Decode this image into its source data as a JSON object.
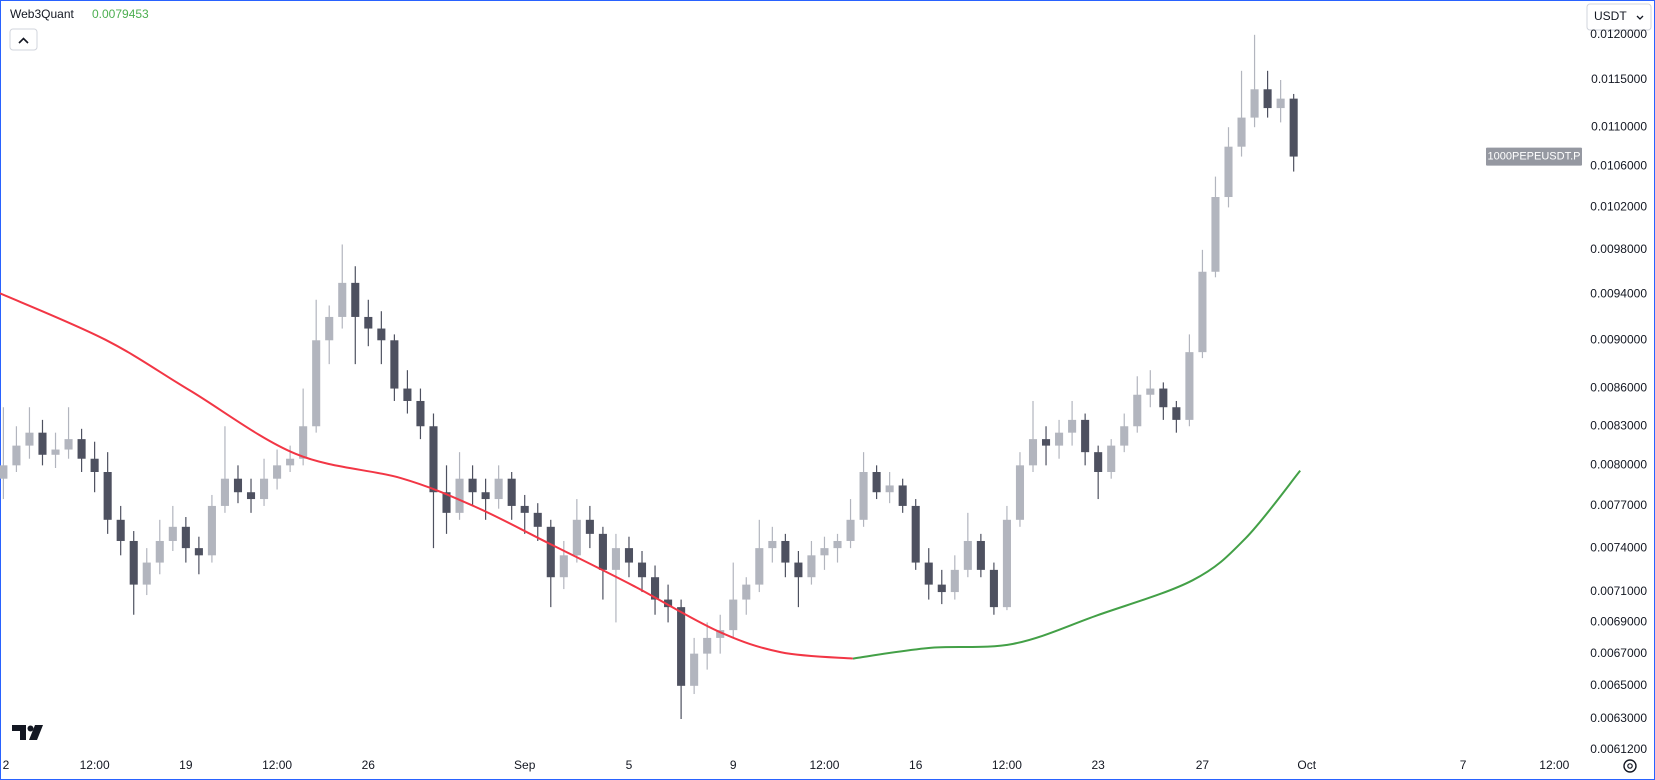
{
  "chart_data": {
    "type": "candlestick",
    "log_scale": true,
    "grid": false,
    "indicator": {
      "name": "Web3Quant",
      "value": 0.0079453,
      "color": "#4caf50"
    },
    "currency": "USDT",
    "symbol": "1000PEPEUSDT.P",
    "up_color": "#b2b5be",
    "down_color": "#4e5160",
    "xlim": [
      11.87,
      72.6
    ],
    "ylim": [
      0.00609,
      0.0124
    ],
    "xticks": [
      {
        "value": 12,
        "label": "2"
      },
      {
        "value": 15.5,
        "label": "12:00"
      },
      19,
      {
        "value": 22.5,
        "label": "12:00"
      },
      26,
      {
        "value": 32,
        "label": "Sep"
      },
      {
        "value": 36,
        "label": "5"
      },
      {
        "value": 40,
        "label": "9"
      },
      {
        "value": 43.5,
        "label": "12:00"
      },
      {
        "value": 47,
        "label": "16"
      },
      {
        "value": 50.5,
        "label": "12:00"
      },
      {
        "value": 54,
        "label": "23"
      },
      {
        "value": 58,
        "label": "27"
      },
      {
        "value": 62,
        "label": "Oct"
      },
      {
        "value": 68,
        "label": "7"
      },
      {
        "value": 71.5,
        "label": "12:00"
      }
    ],
    "yticks": [
      {
        "value": 0.012,
        "label": "0.0120000"
      },
      {
        "value": 0.0115,
        "label": "0.0115000"
      },
      {
        "value": 0.011,
        "label": "0.0110000"
      },
      {
        "value": 0.0106,
        "label": "0.0106000"
      },
      {
        "value": 0.0102,
        "label": "0.0102000"
      },
      {
        "value": 0.0098,
        "label": "0.0098000"
      },
      {
        "value": 0.0094,
        "label": "0.0094000"
      },
      {
        "value": 0.009,
        "label": "0.0090000"
      },
      {
        "value": 0.0086,
        "label": "0.0086000"
      },
      {
        "value": 0.0083,
        "label": "0.0083000"
      },
      {
        "value": 0.008,
        "label": "0.0080000"
      },
      {
        "value": 0.0077,
        "label": "0.0077000"
      },
      {
        "value": 0.0074,
        "label": "0.0074000"
      },
      {
        "value": 0.0071,
        "label": "0.0071000"
      },
      {
        "value": 0.0069,
        "label": "0.0069000"
      },
      {
        "value": 0.0067,
        "label": "0.0067000"
      },
      {
        "value": 0.0065,
        "label": "0.0065000"
      },
      {
        "value": 0.0063,
        "label": "0.0063000"
      },
      {
        "value": 0.00612,
        "label": "0.0061200"
      }
    ],
    "x": [
      12,
      12.5,
      13,
      13.5,
      14,
      14.5,
      15,
      15.5,
      16,
      16.5,
      17,
      17.5,
      18,
      18.5,
      19,
      19.5,
      20,
      20.5,
      21,
      21.5,
      22,
      22.5,
      23,
      23.5,
      24,
      24.5,
      25,
      25.5,
      26,
      26.5,
      27,
      27.5,
      28,
      28.5,
      29,
      29.5,
      30,
      30.5,
      31,
      31.5,
      32,
      32.5,
      33,
      33.5,
      34,
      34.5,
      35,
      35.5,
      36,
      36.5,
      37,
      37.5,
      38,
      38.5,
      39,
      39.5,
      40,
      40.5,
      41,
      41.5,
      42,
      42.5,
      43,
      43.5,
      44,
      44.5,
      45,
      45.5,
      46,
      46.5,
      47,
      47.5,
      48,
      48.5,
      49,
      49.5,
      50,
      50.5,
      51,
      51.5,
      52,
      52.5,
      53,
      53.5,
      54,
      54.5,
      55,
      55.5,
      56,
      56.5,
      57,
      57.5,
      58,
      58.5,
      59,
      59.5,
      60,
      60.5,
      61,
      61.5
    ],
    "ohlc": [
      [
        0.0079,
        0.00845,
        0.00775,
        0.008
      ],
      [
        0.008,
        0.0083,
        0.00795,
        0.00815
      ],
      [
        0.00815,
        0.00845,
        0.00805,
        0.00825
      ],
      [
        0.00825,
        0.00835,
        0.008,
        0.00808
      ],
      [
        0.00808,
        0.00825,
        0.00798,
        0.00812
      ],
      [
        0.00812,
        0.00845,
        0.00805,
        0.0082
      ],
      [
        0.0082,
        0.00828,
        0.00795,
        0.00805
      ],
      [
        0.00805,
        0.00818,
        0.0078,
        0.00795
      ],
      [
        0.00795,
        0.0081,
        0.0075,
        0.0076
      ],
      [
        0.0076,
        0.0077,
        0.00735,
        0.00745
      ],
      [
        0.00745,
        0.00752,
        0.00695,
        0.00715
      ],
      [
        0.00715,
        0.0074,
        0.00708,
        0.0073
      ],
      [
        0.0073,
        0.0076,
        0.00722,
        0.00745
      ],
      [
        0.00745,
        0.0077,
        0.00738,
        0.00755
      ],
      [
        0.00755,
        0.00762,
        0.0073,
        0.0074
      ],
      [
        0.0074,
        0.00748,
        0.00722,
        0.00735
      ],
      [
        0.00735,
        0.00778,
        0.0073,
        0.0077
      ],
      [
        0.0077,
        0.0083,
        0.00765,
        0.0079
      ],
      [
        0.0079,
        0.008,
        0.00772,
        0.0078
      ],
      [
        0.0078,
        0.0079,
        0.00765,
        0.00775
      ],
      [
        0.00775,
        0.00805,
        0.0077,
        0.0079
      ],
      [
        0.0079,
        0.00812,
        0.00782,
        0.008
      ],
      [
        0.008,
        0.00815,
        0.00795,
        0.00805
      ],
      [
        0.00805,
        0.0086,
        0.008,
        0.0083
      ],
      [
        0.0083,
        0.00935,
        0.00825,
        0.009
      ],
      [
        0.009,
        0.0093,
        0.0088,
        0.0092
      ],
      [
        0.0092,
        0.00985,
        0.0091,
        0.0095
      ],
      [
        0.0095,
        0.00965,
        0.0088,
        0.0092
      ],
      [
        0.0092,
        0.00935,
        0.00895,
        0.0091
      ],
      [
        0.0091,
        0.00925,
        0.0088,
        0.009
      ],
      [
        0.009,
        0.00905,
        0.0085,
        0.0086
      ],
      [
        0.0086,
        0.00875,
        0.0084,
        0.0085
      ],
      [
        0.0085,
        0.0086,
        0.0082,
        0.0083
      ],
      [
        0.0083,
        0.0084,
        0.0074,
        0.0078
      ],
      [
        0.0078,
        0.008,
        0.0075,
        0.00765
      ],
      [
        0.00765,
        0.0081,
        0.0076,
        0.0079
      ],
      [
        0.0079,
        0.008,
        0.0077,
        0.0078
      ],
      [
        0.0078,
        0.0079,
        0.0076,
        0.00775
      ],
      [
        0.00775,
        0.008,
        0.00768,
        0.0079
      ],
      [
        0.0079,
        0.00795,
        0.0076,
        0.0077
      ],
      [
        0.0077,
        0.00778,
        0.0075,
        0.00765
      ],
      [
        0.00765,
        0.00772,
        0.00745,
        0.00755
      ],
      [
        0.00755,
        0.0076,
        0.007,
        0.0072
      ],
      [
        0.0072,
        0.00745,
        0.00712,
        0.00735
      ],
      [
        0.00735,
        0.00775,
        0.0073,
        0.0076
      ],
      [
        0.0076,
        0.0077,
        0.0074,
        0.0075
      ],
      [
        0.0075,
        0.00755,
        0.00705,
        0.00725
      ],
      [
        0.00725,
        0.0075,
        0.0069,
        0.0074
      ],
      [
        0.0074,
        0.00748,
        0.0072,
        0.0073
      ],
      [
        0.0073,
        0.00738,
        0.0071,
        0.0072
      ],
      [
        0.0072,
        0.00728,
        0.00695,
        0.00705
      ],
      [
        0.00705,
        0.00715,
        0.0069,
        0.007
      ],
      [
        0.007,
        0.00705,
        0.0063,
        0.0065
      ],
      [
        0.0065,
        0.0068,
        0.00645,
        0.0067
      ],
      [
        0.0067,
        0.0069,
        0.0066,
        0.0068
      ],
      [
        0.0068,
        0.00695,
        0.0067,
        0.00685
      ],
      [
        0.00685,
        0.0073,
        0.0068,
        0.00705
      ],
      [
        0.00705,
        0.0072,
        0.00695,
        0.00715
      ],
      [
        0.00715,
        0.0076,
        0.0071,
        0.0074
      ],
      [
        0.0074,
        0.00755,
        0.0073,
        0.00745
      ],
      [
        0.00745,
        0.0075,
        0.0072,
        0.0073
      ],
      [
        0.0073,
        0.00738,
        0.007,
        0.0072
      ],
      [
        0.0072,
        0.00745,
        0.00715,
        0.00735
      ],
      [
        0.00735,
        0.00748,
        0.00725,
        0.0074
      ],
      [
        0.0074,
        0.0075,
        0.0073,
        0.00745
      ],
      [
        0.00745,
        0.00775,
        0.0074,
        0.0076
      ],
      [
        0.0076,
        0.0081,
        0.00755,
        0.00795
      ],
      [
        0.00795,
        0.008,
        0.00775,
        0.0078
      ],
      [
        0.0078,
        0.00795,
        0.00772,
        0.00785
      ],
      [
        0.00785,
        0.0079,
        0.00765,
        0.0077
      ],
      [
        0.0077,
        0.00775,
        0.00725,
        0.0073
      ],
      [
        0.0073,
        0.0074,
        0.00705,
        0.00715
      ],
      [
        0.00715,
        0.00725,
        0.00702,
        0.0071
      ],
      [
        0.0071,
        0.00735,
        0.00705,
        0.00725
      ],
      [
        0.00725,
        0.00765,
        0.0072,
        0.00745
      ],
      [
        0.00745,
        0.0075,
        0.0072,
        0.00725
      ],
      [
        0.00725,
        0.0073,
        0.00695,
        0.007
      ],
      [
        0.007,
        0.0077,
        0.00698,
        0.0076
      ],
      [
        0.0076,
        0.0081,
        0.00755,
        0.008
      ],
      [
        0.008,
        0.0085,
        0.00795,
        0.0082
      ],
      [
        0.0082,
        0.0083,
        0.008,
        0.00815
      ],
      [
        0.00815,
        0.00835,
        0.00805,
        0.00825
      ],
      [
        0.00825,
        0.0085,
        0.00815,
        0.00835
      ],
      [
        0.00835,
        0.0084,
        0.008,
        0.0081
      ],
      [
        0.0081,
        0.00815,
        0.00775,
        0.00795
      ],
      [
        0.00795,
        0.0082,
        0.0079,
        0.00815
      ],
      [
        0.00815,
        0.0084,
        0.0081,
        0.0083
      ],
      [
        0.0083,
        0.0087,
        0.00825,
        0.00855
      ],
      [
        0.00855,
        0.00875,
        0.00845,
        0.0086
      ],
      [
        0.0086,
        0.00865,
        0.00835,
        0.00845
      ],
      [
        0.00845,
        0.0085,
        0.00825,
        0.00835
      ],
      [
        0.00835,
        0.00905,
        0.0083,
        0.0089
      ],
      [
        0.0089,
        0.0098,
        0.00885,
        0.0096
      ],
      [
        0.0096,
        0.0105,
        0.00955,
        0.0103
      ],
      [
        0.0103,
        0.011,
        0.0102,
        0.0108
      ],
      [
        0.0108,
        0.0116,
        0.0107,
        0.0111
      ],
      [
        0.0111,
        0.012,
        0.011,
        0.0114
      ],
      [
        0.0114,
        0.0116,
        0.0111,
        0.0112
      ],
      [
        0.0112,
        0.0115,
        0.01105,
        0.0113
      ],
      [
        0.0113,
        0.01135,
        0.01055,
        0.0107
      ]
    ],
    "lines": [
      {
        "color": "#f23645",
        "x": [
          11.87,
          15.92,
          19.16,
          23.21,
          27.26,
          30.09,
          32.93,
          36.17,
          39.4,
          41.83,
          44.59
        ],
        "values": [
          0.009407,
          0.009004,
          0.008584,
          0.008087,
          0.007904,
          0.007695,
          0.007433,
          0.007142,
          0.006844,
          0.006709,
          0.006669
        ]
      },
      {
        "color": "#43a047",
        "x": [
          44.59,
          47.5,
          50.74,
          53.98,
          57.62,
          59.65,
          61.75
        ],
        "values": [
          0.006669,
          0.006736,
          0.006762,
          0.006947,
          0.007179,
          0.007468,
          0.00796
        ]
      }
    ]
  }
}
